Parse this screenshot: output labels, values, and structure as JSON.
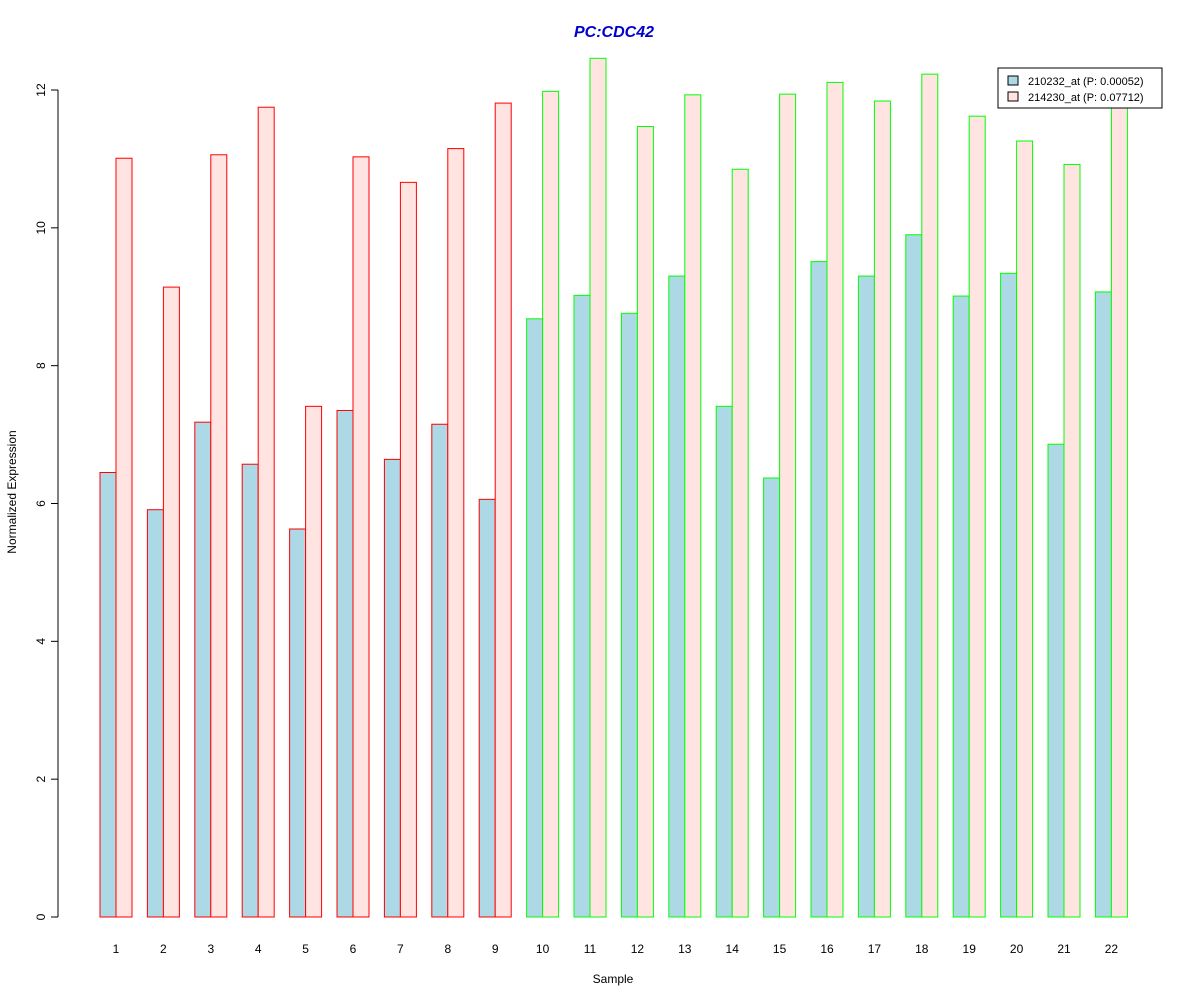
{
  "chart_data": {
    "type": "bar",
    "title": "PC:CDC42",
    "xlabel": "Sample",
    "ylabel": "Normalized Expression",
    "ylim": [
      0,
      12
    ],
    "y_ticks": [
      0,
      2,
      4,
      6,
      8,
      10,
      12
    ],
    "categories": [
      "1",
      "2",
      "3",
      "4",
      "5",
      "6",
      "7",
      "8",
      "9",
      "10",
      "11",
      "12",
      "13",
      "14",
      "15",
      "16",
      "17",
      "18",
      "19",
      "20",
      "21",
      "22"
    ],
    "group_border_colors": [
      "#ff0000",
      "#ff0000",
      "#ff0000",
      "#ff0000",
      "#ff0000",
      "#ff0000",
      "#ff0000",
      "#ff0000",
      "#ff0000",
      "#00ff00",
      "#00ff00",
      "#00ff00",
      "#00ff00",
      "#00ff00",
      "#00ff00",
      "#00ff00",
      "#00ff00",
      "#00ff00",
      "#00ff00",
      "#00ff00",
      "#00ff00",
      "#00ff00"
    ],
    "series": [
      {
        "name": "210232_at (P: 0.00052)",
        "fill": "#add8e6",
        "values": [
          6.45,
          5.91,
          7.18,
          6.57,
          5.63,
          7.35,
          6.64,
          7.15,
          6.06,
          8.68,
          9.02,
          8.76,
          9.3,
          7.41,
          6.37,
          9.51,
          9.3,
          9.9,
          9.01,
          9.34,
          6.86,
          9.07
        ]
      },
      {
        "name": "214230_at (P: 0.07712)",
        "fill": "#ffe4e1",
        "values": [
          11.01,
          9.14,
          11.06,
          11.75,
          7.41,
          11.03,
          10.66,
          11.15,
          11.81,
          11.98,
          12.46,
          11.47,
          11.93,
          10.85,
          11.94,
          12.11,
          11.84,
          12.23,
          11.62,
          11.26,
          10.92,
          11.75
        ]
      }
    ],
    "title_color": "#0000cd",
    "legend_position": "top-right",
    "grid": false
  }
}
